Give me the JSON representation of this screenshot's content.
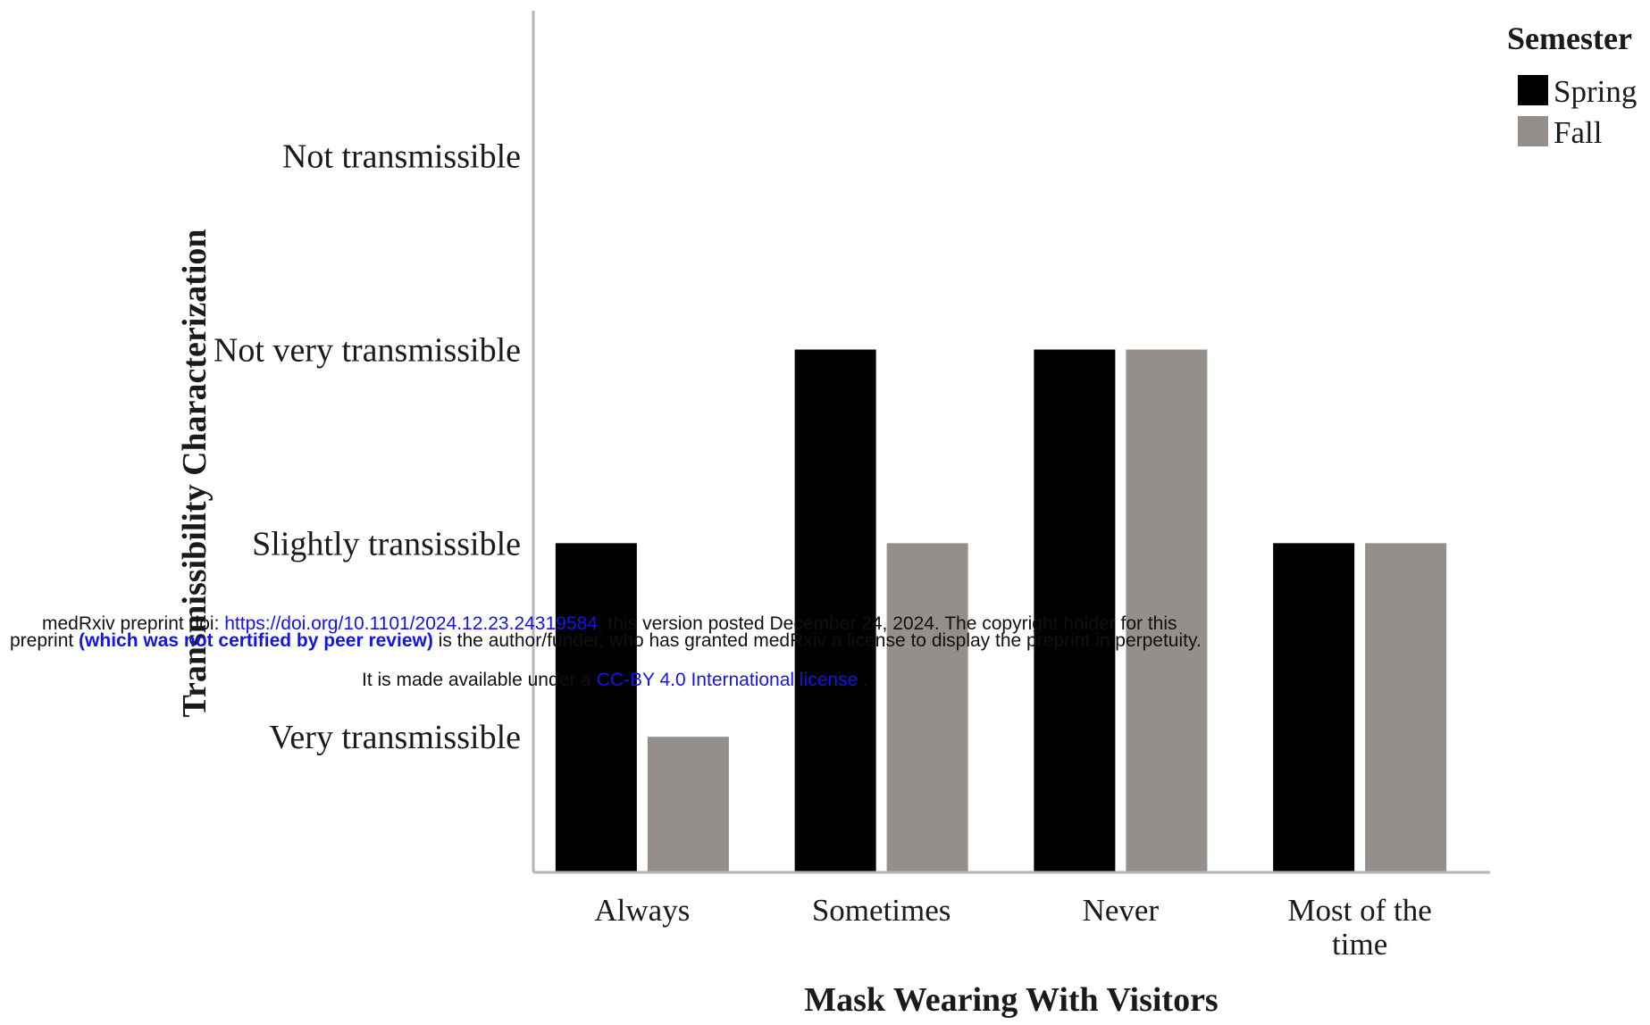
{
  "chart_data": {
    "type": "bar",
    "title": "",
    "xlabel": "Mask Wearing With Visitors",
    "ylabel": "Transmissibility Characterization",
    "categories": [
      "Always",
      "Sometimes",
      "Never",
      "Most of the time"
    ],
    "category_lines": [
      [
        "Always"
      ],
      [
        "Sometimes"
      ],
      [
        "Never"
      ],
      [
        "Most of the",
        "time"
      ]
    ],
    "y_tick_labels": [
      "Very transmissible",
      "Slightly transissible",
      "Not very transmissible",
      "Not transmissible"
    ],
    "y_tick_values": [
      1,
      2,
      3,
      4
    ],
    "ylim": [
      0.3,
      4.75
    ],
    "series": [
      {
        "name": "Spring",
        "values": [
          2,
          3,
          3,
          2
        ],
        "color": "#000000"
      },
      {
        "name": "Fall",
        "values": [
          1,
          2,
          3,
          2
        ],
        "color": "#958f8c"
      }
    ],
    "legend": {
      "title": "Semester",
      "position": "top-right"
    },
    "grid": false
  },
  "watermark": {
    "line1_prefix": "medRxiv preprint doi: ",
    "line1_link": "https://doi.org/10.1101/2024.12.23.24319584",
    "line1_suffix": "; this version posted December 24, 2024. The copyright holder for this",
    "line2_prefix": "preprint ",
    "line2_bold": "(which was not certified by peer review)",
    "line2_suffix": " is the author/funder, who has granted medRxiv a license to display the preprint in perpetuity.",
    "line3_prefix": "It is made available under a ",
    "line3_link": "CC-BY 4.0 International license",
    "line3_suffix": " ."
  }
}
